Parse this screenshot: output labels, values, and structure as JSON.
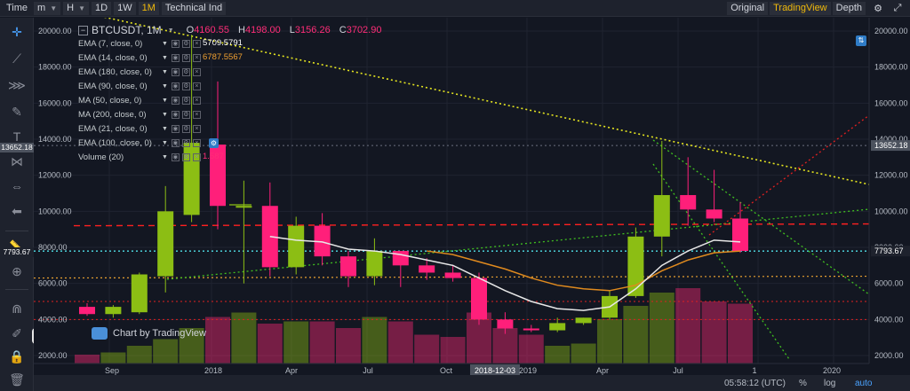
{
  "toolbar": {
    "time_label": "Time",
    "interval_select": "m",
    "hour_select": "H",
    "d1": "1D",
    "w1": "1W",
    "m1": "1M",
    "technical": "Technical Ind",
    "original": "Original",
    "tradingview": "TradingView",
    "depth": "Depth"
  },
  "legend": {
    "symbol": "BTCUSDT, 1M",
    "open_key": "O",
    "open": "4160.55",
    "high_key": "H",
    "high": "4198.00",
    "low_key": "L",
    "low": "3156.26",
    "close_key": "C",
    "close": "3702.90",
    "indicators": [
      {
        "label": "EMA (7, close, 0)",
        "value": "5709.5791",
        "color": "#ffffff"
      },
      {
        "label": "EMA (14, close, 0)",
        "value": "6787.5567",
        "color": "#f0a030"
      },
      {
        "label": "EMA (180, close, 0)",
        "value": "",
        "color": "#c5cbce"
      },
      {
        "label": "EMA (90, close, 0)",
        "value": "",
        "color": "#c5cbce"
      },
      {
        "label": "MA (50, close, 0)",
        "value": "",
        "color": "#c5cbce"
      },
      {
        "label": "MA (200, close, 0)",
        "value": "",
        "color": "#c5cbce"
      },
      {
        "label": "EMA (21, close, 0)",
        "value": "",
        "color": "#c5cbce"
      },
      {
        "label": "EMA (100, close, 0)",
        "value": "",
        "color": "#c5cbce"
      },
      {
        "label": "Volume (20)",
        "value": "1.587",
        "color": "#ff2d78"
      }
    ]
  },
  "watermark": "Chart by TradingView",
  "price_axis": {
    "ticks": [
      "20000.00",
      "18000.00",
      "16000.00",
      "14000.00",
      "12000.00",
      "10000.00",
      "8000.00",
      "6000.00",
      "4000.00",
      "2000.00"
    ],
    "left_tag_13652": "13652.18",
    "left_tag_7793": "7793.67",
    "right_tag_13652": "13652.18",
    "right_tag_7793": "7793.67"
  },
  "time_axis": {
    "labels": [
      "Sep",
      "2018",
      "Apr",
      "Jul",
      "Oct",
      "2018-12-03",
      "2019",
      "Apr",
      "Jul",
      "1",
      "2020"
    ]
  },
  "bottom": {
    "time": "05:58:12 (UTC)",
    "percent": "%",
    "log": "log",
    "auto": "auto"
  },
  "chart_data": {
    "type": "candlestick",
    "interval": "1M",
    "y_ticks": [
      2000,
      4000,
      6000,
      8000,
      10000,
      12000,
      14000,
      16000,
      18000,
      20000
    ],
    "candles": [
      {
        "o": 4700,
        "h": 4900,
        "l": 4200,
        "c": 4300
      },
      {
        "o": 4300,
        "h": 4800,
        "l": 4100,
        "c": 4700
      },
      {
        "o": 4400,
        "h": 6600,
        "l": 4300,
        "c": 6500
      },
      {
        "o": 6400,
        "h": 11400,
        "l": 5500,
        "c": 10000
      },
      {
        "o": 9800,
        "h": 19800,
        "l": 9400,
        "c": 13800
      },
      {
        "o": 13700,
        "h": 17200,
        "l": 9000,
        "c": 10300
      },
      {
        "o": 10300,
        "h": 11700,
        "l": 6000,
        "c": 10300
      },
      {
        "o": 10300,
        "h": 11600,
        "l": 6400,
        "c": 6900
      },
      {
        "o": 6900,
        "h": 9700,
        "l": 6500,
        "c": 9200
      },
      {
        "o": 9200,
        "h": 9900,
        "l": 7000,
        "c": 7500
      },
      {
        "o": 7500,
        "h": 7800,
        "l": 5800,
        "c": 6400
      },
      {
        "o": 6400,
        "h": 8500,
        "l": 5900,
        "c": 7800
      },
      {
        "o": 7800,
        "h": 7700,
        "l": 5800,
        "c": 7000
      },
      {
        "o": 7000,
        "h": 7400,
        "l": 6200,
        "c": 6600
      },
      {
        "o": 6600,
        "h": 7000,
        "l": 6100,
        "c": 6300
      },
      {
        "o": 6300,
        "h": 6600,
        "l": 3700,
        "c": 4000
      },
      {
        "o": 4000,
        "h": 4400,
        "l": 3200,
        "c": 3500
      },
      {
        "o": 3500,
        "h": 3700,
        "l": 3300,
        "c": 3400
      },
      {
        "o": 3400,
        "h": 4100,
        "l": 3300,
        "c": 3800
      },
      {
        "o": 3800,
        "h": 4100,
        "l": 3700,
        "c": 4100
      },
      {
        "o": 4100,
        "h": 5600,
        "l": 4000,
        "c": 5300
      },
      {
        "o": 5300,
        "h": 9100,
        "l": 5200,
        "c": 8600
      },
      {
        "o": 8600,
        "h": 13900,
        "l": 7500,
        "c": 10900
      },
      {
        "o": 10900,
        "h": 13000,
        "l": 9200,
        "c": 10100
      },
      {
        "o": 10100,
        "h": 12300,
        "l": 9400,
        "c": 9600
      },
      {
        "o": 9600,
        "h": 10500,
        "l": 7700,
        "c": 7800
      }
    ],
    "ema7": [
      null,
      null,
      null,
      null,
      null,
      null,
      null,
      8600,
      8400,
      8300,
      7900,
      7800,
      7600,
      7300,
      7000,
      6300,
      5600,
      5000,
      4600,
      4500,
      4700,
      5700,
      7000,
      7800,
      8400,
      8300
    ],
    "ema14": [
      null,
      null,
      null,
      null,
      null,
      null,
      null,
      null,
      null,
      null,
      null,
      null,
      null,
      7800,
      7600,
      7200,
      6800,
      6300,
      5900,
      5700,
      5600,
      5900,
      6700,
      7300,
      7700,
      7800
    ],
    "volume": [
      0.4,
      0.5,
      0.8,
      1.1,
      1.6,
      2.1,
      2.3,
      1.8,
      1.9,
      1.9,
      1.6,
      2.1,
      1.9,
      1.3,
      1.2,
      2.3,
      1.6,
      1.3,
      0.8,
      0.9,
      2.0,
      2.6,
      3.2,
      3.4,
      2.8,
      2.7
    ]
  }
}
